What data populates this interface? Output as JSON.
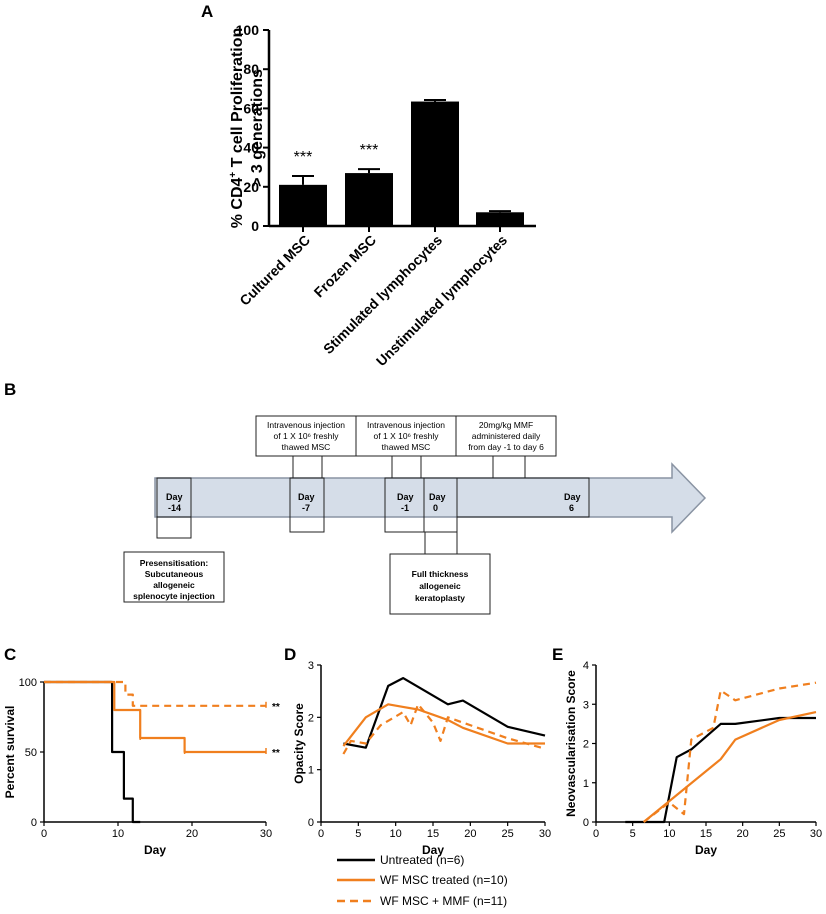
{
  "panels": {
    "a": "A",
    "b": "B",
    "c": "C",
    "d": "D",
    "e": "E"
  },
  "chart_data": [
    {
      "id": "A",
      "type": "bar",
      "title": "",
      "ylabel_line1": "% CD4",
      "ylabel_sup": "+",
      "ylabel_line1_rest": " T cell Proliferation",
      "ylabel_line2": "> 3 generations",
      "ylim": [
        0,
        100
      ],
      "yticks": [
        "0",
        "20",
        "40",
        "60",
        "80",
        "100"
      ],
      "categories": [
        "Cultured MSC",
        "Frozen MSC",
        "Stimulated lymphocytes",
        "Unstimulated lymphocytes"
      ],
      "values": [
        21,
        27,
        63.5,
        7
      ],
      "errors": [
        4.5,
        2,
        0.8,
        0.6
      ],
      "annotations": [
        "***",
        "***",
        "",
        ""
      ]
    },
    {
      "id": "C",
      "type": "line",
      "xlabel": "Day",
      "ylabel": "Percent survival",
      "xlim": [
        0,
        30
      ],
      "ylim": [
        0,
        100
      ],
      "xticks": [
        "0",
        "10",
        "20",
        "30"
      ],
      "yticks": [
        "0",
        "50",
        "100"
      ],
      "series": [
        {
          "name": "Untreated (n=6)",
          "x": [
            0,
            9.2,
            9.2,
            10.8,
            10.8,
            12,
            12,
            13,
            13
          ],
          "y": [
            100,
            100,
            50,
            50,
            16.7,
            16.7,
            0,
            0,
            0
          ]
        },
        {
          "name": "WF MSC treated (n=10)",
          "x": [
            0,
            9.5,
            9.5,
            13,
            13,
            19,
            19,
            30
          ],
          "y": [
            100,
            100,
            80,
            80,
            60,
            60,
            50,
            50
          ]
        },
        {
          "name": "WF MSC + MMF (n=11)",
          "x": [
            0,
            11,
            11,
            12,
            12,
            30
          ],
          "y": [
            100,
            100,
            91,
            91,
            83,
            83
          ]
        }
      ],
      "annotations": [
        "**",
        "**"
      ]
    },
    {
      "id": "D",
      "type": "line",
      "xlabel": "Day",
      "ylabel": "Opacity Score",
      "xlim": [
        0,
        30
      ],
      "ylim": [
        0,
        3
      ],
      "xticks": [
        "0",
        "5",
        "10",
        "15",
        "20",
        "25",
        "30"
      ],
      "yticks": [
        "0",
        "1",
        "2",
        "3"
      ],
      "series": [
        {
          "name": "Untreated (n=6)",
          "x": [
            3,
            6,
            9,
            11,
            14,
            17,
            19,
            25,
            30
          ],
          "y": [
            1.5,
            1.42,
            2.6,
            2.75,
            2.5,
            2.25,
            2.32,
            1.82,
            1.65
          ]
        },
        {
          "name": "WF MSC treated (n=10)",
          "x": [
            3,
            6,
            9,
            11,
            13,
            15,
            17,
            19,
            25,
            30
          ],
          "y": [
            1.45,
            2.0,
            2.25,
            2.2,
            2.15,
            2.05,
            1.95,
            1.8,
            1.5,
            1.5
          ]
        },
        {
          "name": "WF MSC + MMF (n=11)",
          "x": [
            3,
            4,
            6,
            8,
            11,
            12,
            13,
            15,
            16,
            17,
            19,
            25,
            30
          ],
          "y": [
            1.3,
            1.55,
            1.5,
            1.85,
            2.1,
            1.85,
            2.25,
            1.9,
            1.55,
            2.0,
            1.9,
            1.6,
            1.4
          ]
        }
      ]
    },
    {
      "id": "E",
      "type": "line",
      "xlabel": "Day",
      "ylabel": "Neovascularisation Score",
      "xlim": [
        0,
        30
      ],
      "ylim": [
        0,
        4
      ],
      "xticks": [
        "0",
        "5",
        "10",
        "15",
        "20",
        "25",
        "30"
      ],
      "yticks": [
        "0",
        "1",
        "2",
        "3",
        "4"
      ],
      "series": [
        {
          "name": "Untreated (n=6)",
          "x": [
            4,
            9.3,
            11,
            13,
            17,
            19,
            25,
            30
          ],
          "y": [
            0,
            0,
            1.65,
            1.85,
            2.5,
            2.5,
            2.65,
            2.65
          ]
        },
        {
          "name": "WF MSC treated (n=10)",
          "x": [
            6.5,
            17,
            19,
            25,
            30
          ],
          "y": [
            0,
            1.6,
            2.1,
            2.6,
            2.8
          ]
        },
        {
          "name": "WF MSC + MMF (n=11)",
          "x": [
            6.5,
            10,
            12,
            13,
            16,
            17,
            19,
            25,
            30
          ],
          "y": [
            0,
            0.5,
            0.2,
            2.1,
            2.4,
            3.35,
            3.1,
            3.4,
            3.55
          ]
        }
      ]
    }
  ],
  "timeline": {
    "boxes_above": [
      {
        "lines": [
          "Intravenous injection",
          "of 1 X 10⁶ freshly",
          "thawed MSC"
        ]
      },
      {
        "lines": [
          "Intravenous injection",
          "of 1 X 10⁶ freshly",
          "thawed MSC"
        ]
      },
      {
        "lines": [
          "20mg/kg MMF",
          "administered daily",
          "from day -1 to day 6"
        ]
      }
    ],
    "boxes_below": [
      {
        "lines": [
          "Presensitisation:",
          "Subcutaneous",
          "allogeneic",
          "splenocyte injection"
        ]
      },
      {
        "lines": [
          "Full thickness",
          "allogeneic",
          "keratoplasty"
        ]
      }
    ],
    "days": [
      {
        "lines": [
          "Day",
          "-14"
        ]
      },
      {
        "lines": [
          "Day",
          "-7"
        ]
      },
      {
        "lines": [
          "Day",
          "-1"
        ]
      },
      {
        "lines": [
          "Day",
          "0"
        ]
      },
      {
        "lines": [
          "Day",
          "6"
        ]
      }
    ]
  },
  "legend": {
    "items": [
      {
        "label": "Untreated (n=6)",
        "color": "#000000",
        "dash": false
      },
      {
        "label": "WF MSC treated (n=10)",
        "color": "#f07f1e",
        "dash": false
      },
      {
        "label": "WF MSC + MMF (n=11)",
        "color": "#f07f1e",
        "dash": true
      }
    ]
  },
  "colors": {
    "black": "#000000",
    "orange": "#f07f1e",
    "arrow_fill": "#d5dde8",
    "arrow_stroke": "#8a94a3"
  }
}
